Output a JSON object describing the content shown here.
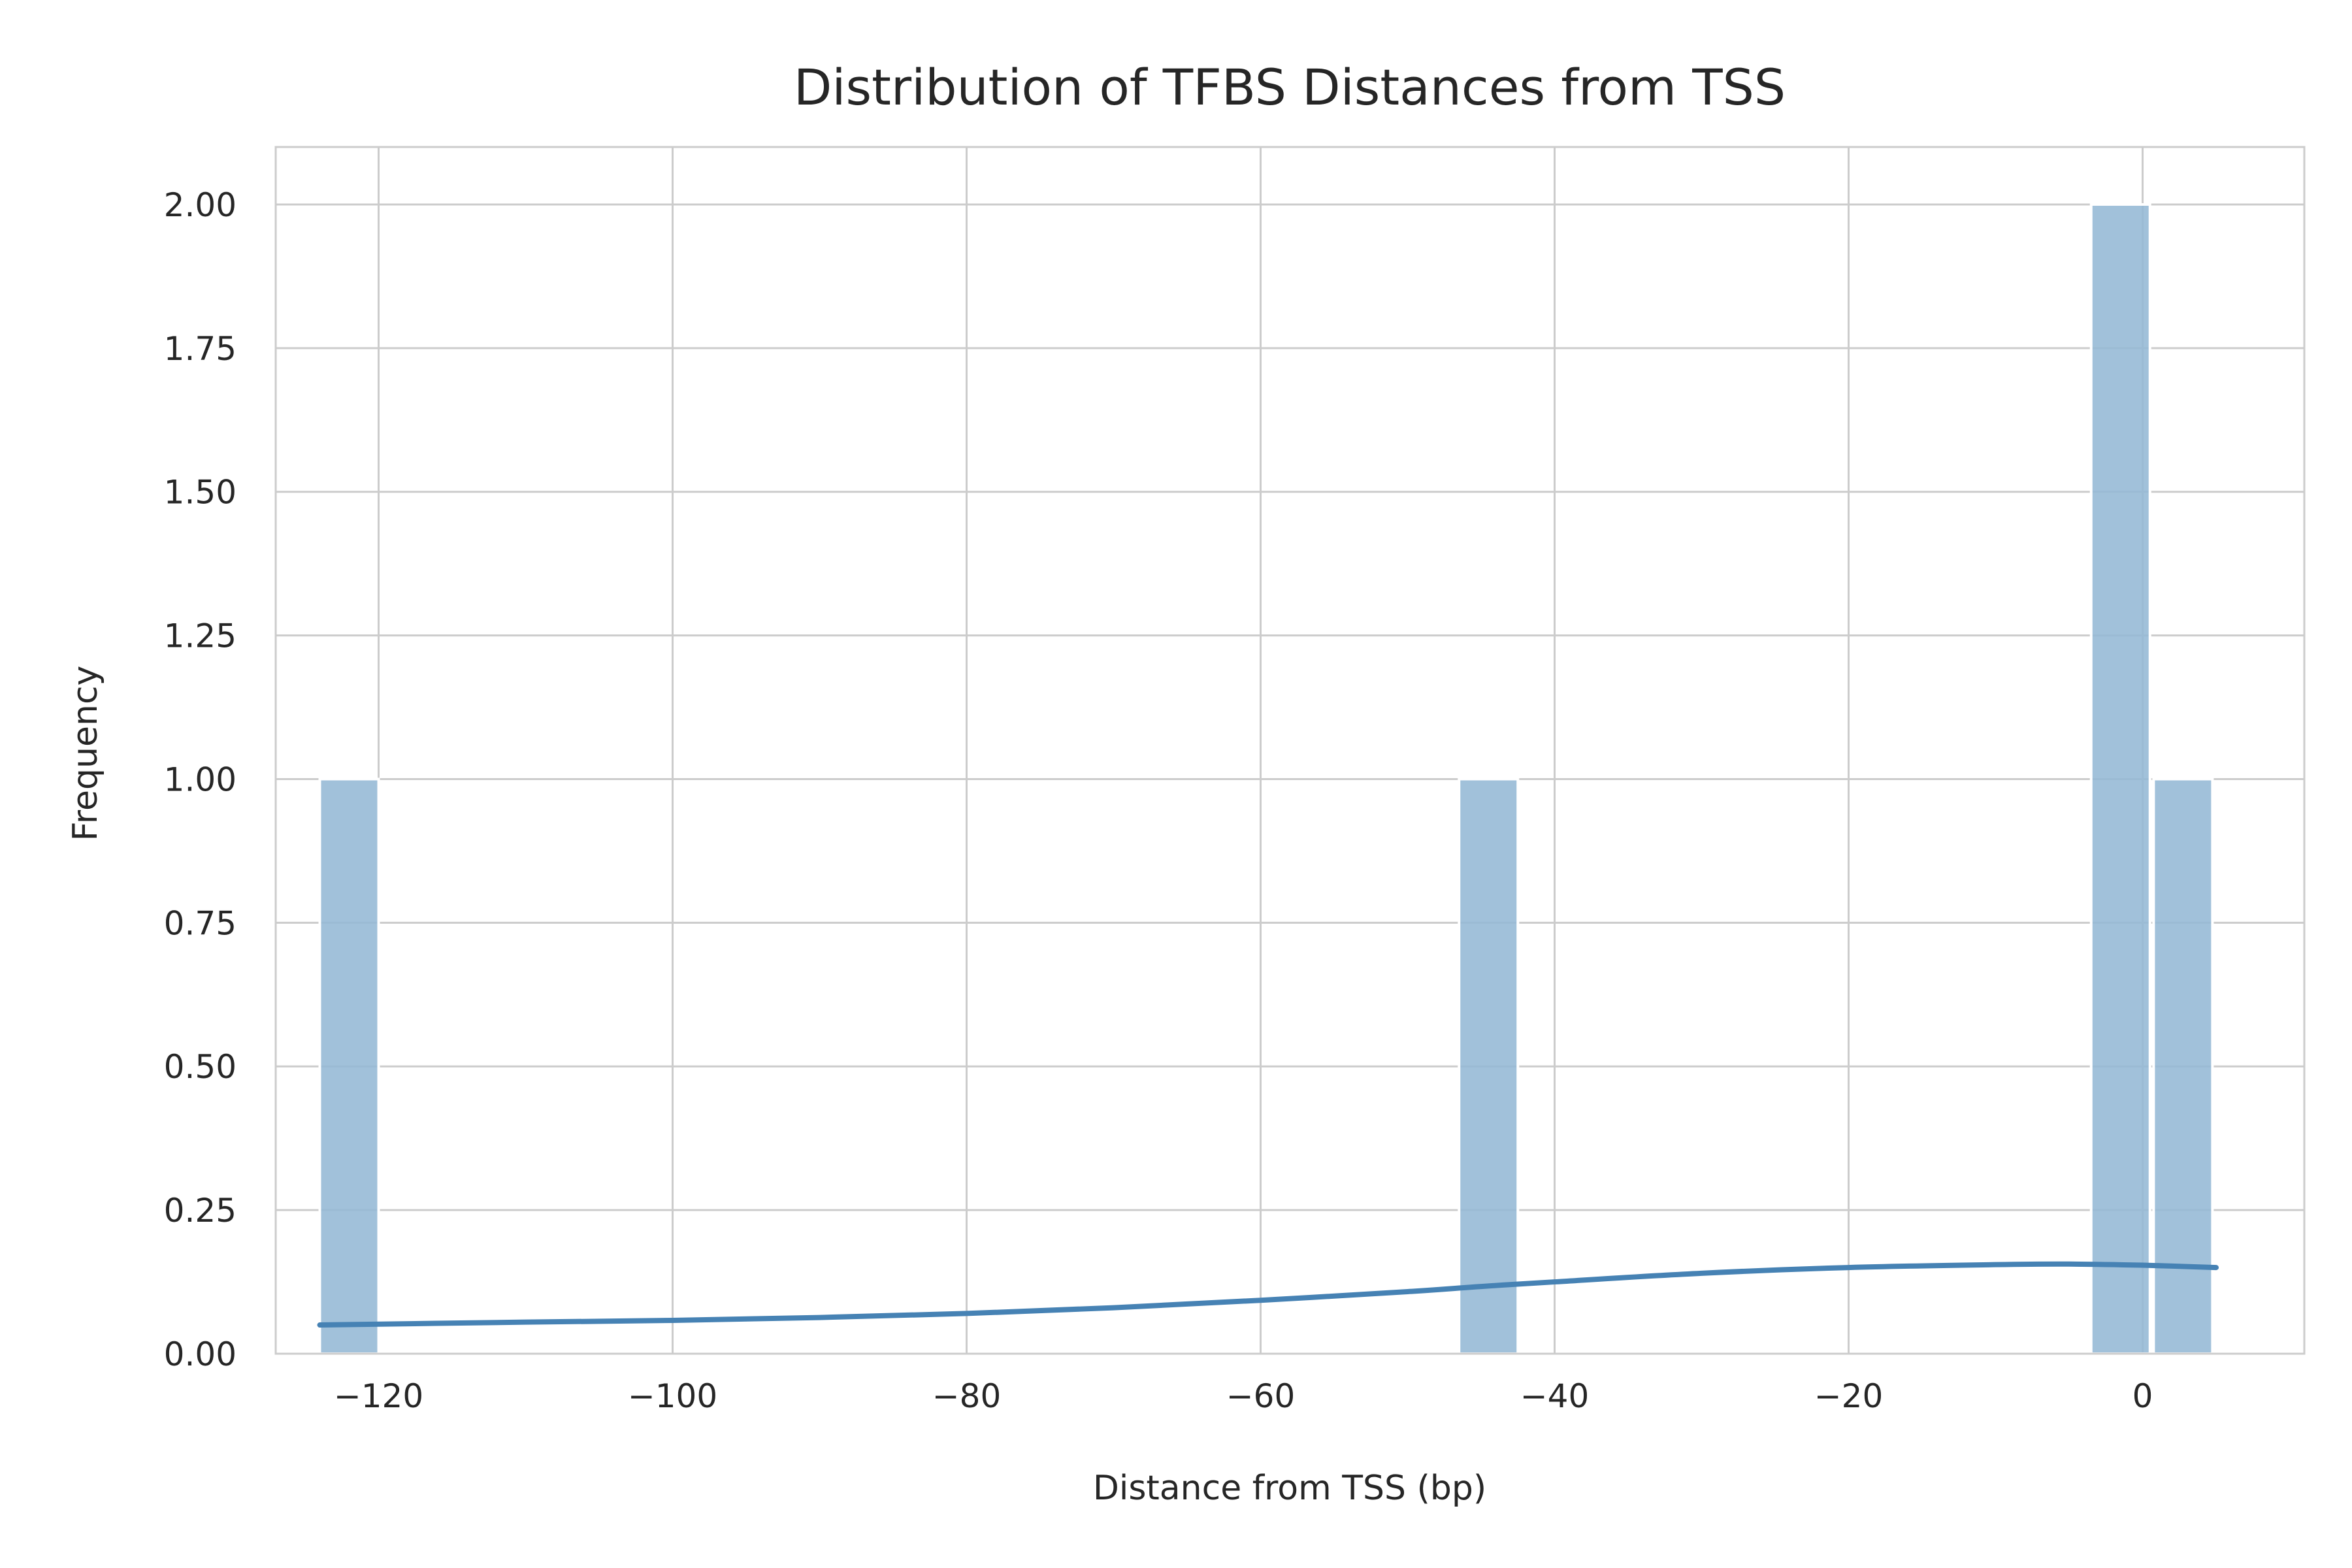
{
  "chart_data": {
    "type": "bar",
    "title": "Distribution of TFBS Distances from TSS",
    "xlabel": "Distance from TSS (bp)",
    "ylabel": "Frequency",
    "xlim": [
      -127,
      11
    ],
    "ylim": [
      0,
      2.1
    ],
    "x_ticks": [
      -120,
      -100,
      -80,
      -60,
      -40,
      -20,
      0
    ],
    "x_tick_labels": [
      "−120",
      "−100",
      "−80",
      "−60",
      "−40",
      "−20",
      "0"
    ],
    "y_ticks": [
      0,
      0.25,
      0.5,
      0.75,
      1.0,
      1.25,
      1.5,
      1.75,
      2.0
    ],
    "y_tick_labels": [
      "0.00",
      "0.25",
      "0.50",
      "0.75",
      "1.00",
      "1.25",
      "1.50",
      "1.75",
      "2.00"
    ],
    "grid": true,
    "bins": [
      {
        "x0": -124,
        "x1": -120,
        "value": 1
      },
      {
        "x0": -46.5,
        "x1": -42.5,
        "value": 1
      },
      {
        "x0": -3.5,
        "x1": 0.5,
        "value": 2
      },
      {
        "x0": 0.75,
        "x1": 4.75,
        "value": 1
      }
    ],
    "kde": {
      "x": [
        -124,
        -110,
        -100,
        -90,
        -80,
        -70,
        -60,
        -50,
        -45,
        -40,
        -30,
        -20,
        -10,
        -5,
        0,
        5
      ],
      "y": [
        0.05,
        0.055,
        0.058,
        0.063,
        0.07,
        0.08,
        0.093,
        0.108,
        0.117,
        0.125,
        0.14,
        0.15,
        0.155,
        0.156,
        0.154,
        0.15
      ]
    },
    "colors": {
      "bar": "#94b8d5",
      "kde": "#4682b4",
      "grid": "#cccccc",
      "axis": "#cccccc"
    }
  }
}
